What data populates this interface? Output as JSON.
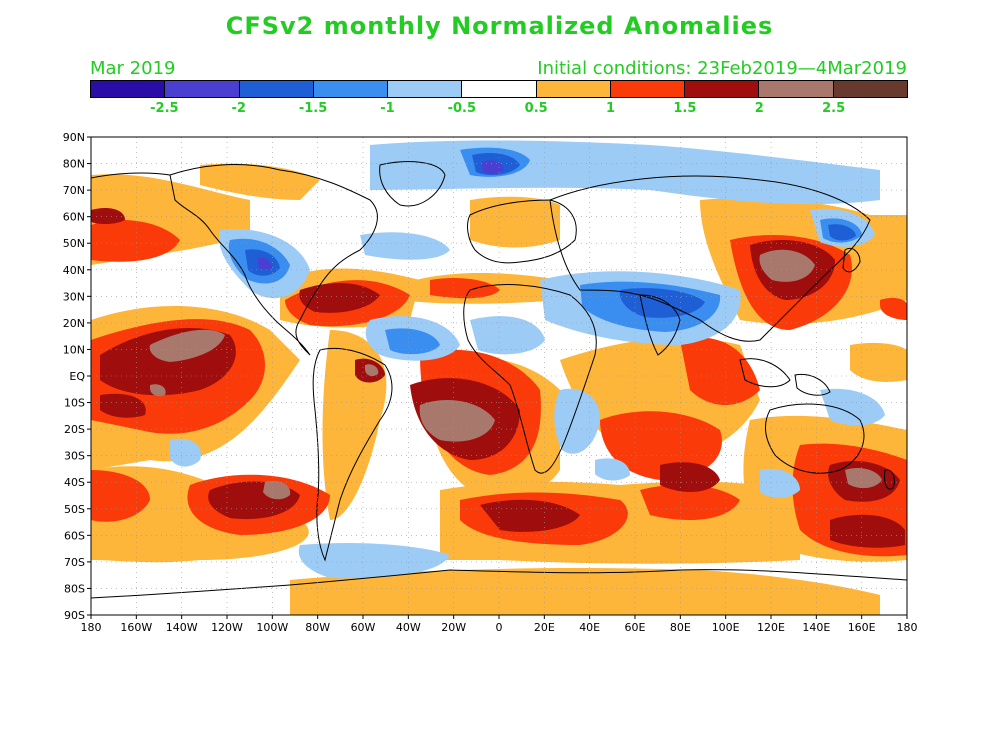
{
  "title": "CFSv2 monthly Normalized Anomalies",
  "month_label": "Mar 2019",
  "initial_conditions": "Initial conditions: 23Feb2019—4Mar2019",
  "legend": {
    "colors": [
      "#2a0da6",
      "#4a3fd1",
      "#1e5fd6",
      "#3a8ef0",
      "#9cccf6",
      "#ffffff",
      "#fdb53a",
      "#fa3a08",
      "#a00d0d",
      "#a8786c",
      "#683a2e"
    ],
    "labels": [
      "-2.5",
      "-2",
      "-1.5",
      "-1",
      "-0.5",
      "0.5",
      "1",
      "1.5",
      "2",
      "2.5"
    ]
  },
  "map": {
    "lat_labels": [
      "90N",
      "80N",
      "70N",
      "60N",
      "50N",
      "40N",
      "30N",
      "20N",
      "10N",
      "EQ",
      "10S",
      "20S",
      "30S",
      "40S",
      "50S",
      "60S",
      "70S",
      "80S",
      "90S"
    ],
    "lon_labels": [
      "180",
      "160W",
      "140W",
      "120W",
      "100W",
      "80W",
      "60W",
      "40W",
      "20W",
      "0",
      "20E",
      "40E",
      "60E",
      "80E",
      "100E",
      "120E",
      "140E",
      "160E",
      "180"
    ]
  }
}
